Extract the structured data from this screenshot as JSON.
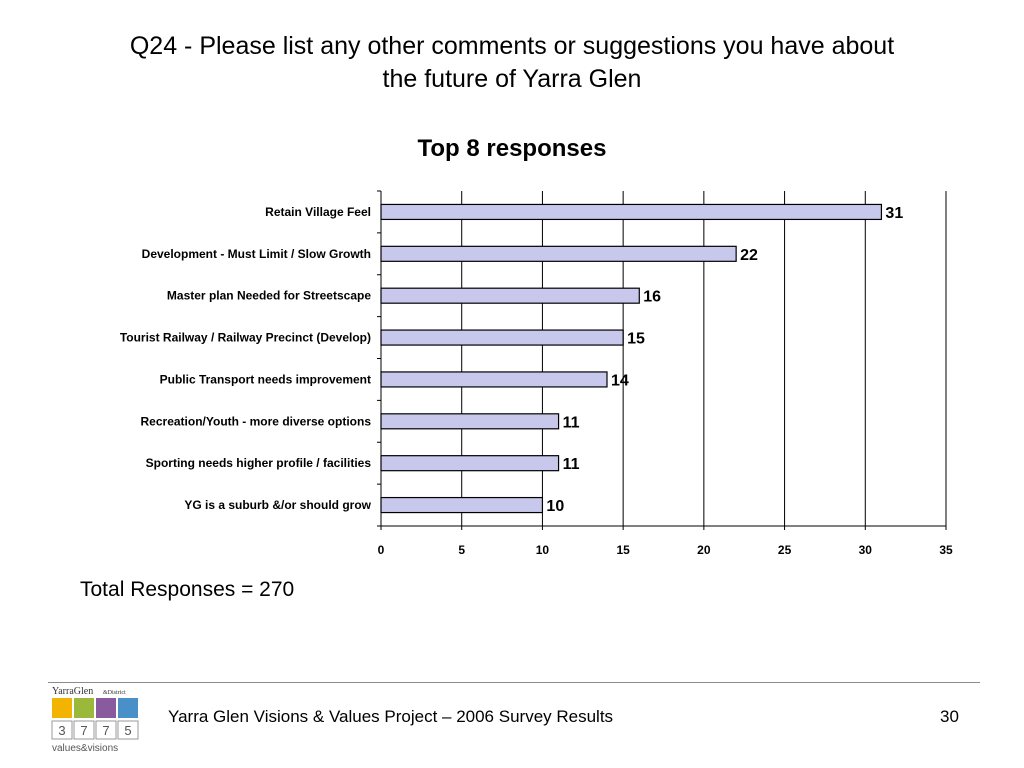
{
  "slide": {
    "title_line1": "Q24 - Please list any other comments or suggestions you have about",
    "title_line2": "the future of Yarra Glen",
    "total_responses": "Total Responses = 270"
  },
  "chart_data": {
    "type": "bar",
    "orientation": "horizontal",
    "title": "Top 8 responses",
    "categories": [
      "Retain Village Feel",
      "Development - Must Limit / Slow Growth",
      "Master plan Needed for Streetscape",
      "Tourist Railway / Railway Precinct (Develop)",
      "Public Transport needs improvement",
      "Recreation/Youth - more diverse options",
      "Sporting needs higher profile / facilities",
      "YG is a suburb &/or should grow"
    ],
    "values": [
      31,
      22,
      16,
      15,
      14,
      11,
      11,
      10
    ],
    "xlim": [
      0,
      35
    ],
    "xticks": [
      0,
      5,
      10,
      15,
      20,
      25,
      30,
      35
    ],
    "xlabel": "",
    "ylabel": "",
    "grid": "vertical",
    "legend": "none",
    "data_labels": true,
    "bar_fill": "#c8c8ec",
    "bar_stroke": "#000000"
  },
  "footer": {
    "text": "Yarra Glen Visions & Values Project – 2006 Survey Results",
    "page": "30"
  },
  "logo": {
    "brand_top": "YarraGlen",
    "brand_suffix": "&District",
    "postcode_digits": [
      "3",
      "7",
      "7",
      "5"
    ],
    "tagline": "values&visions",
    "colors": [
      "#f2b400",
      "#9ab83a",
      "#8a5a9e",
      "#4a90c8"
    ]
  }
}
